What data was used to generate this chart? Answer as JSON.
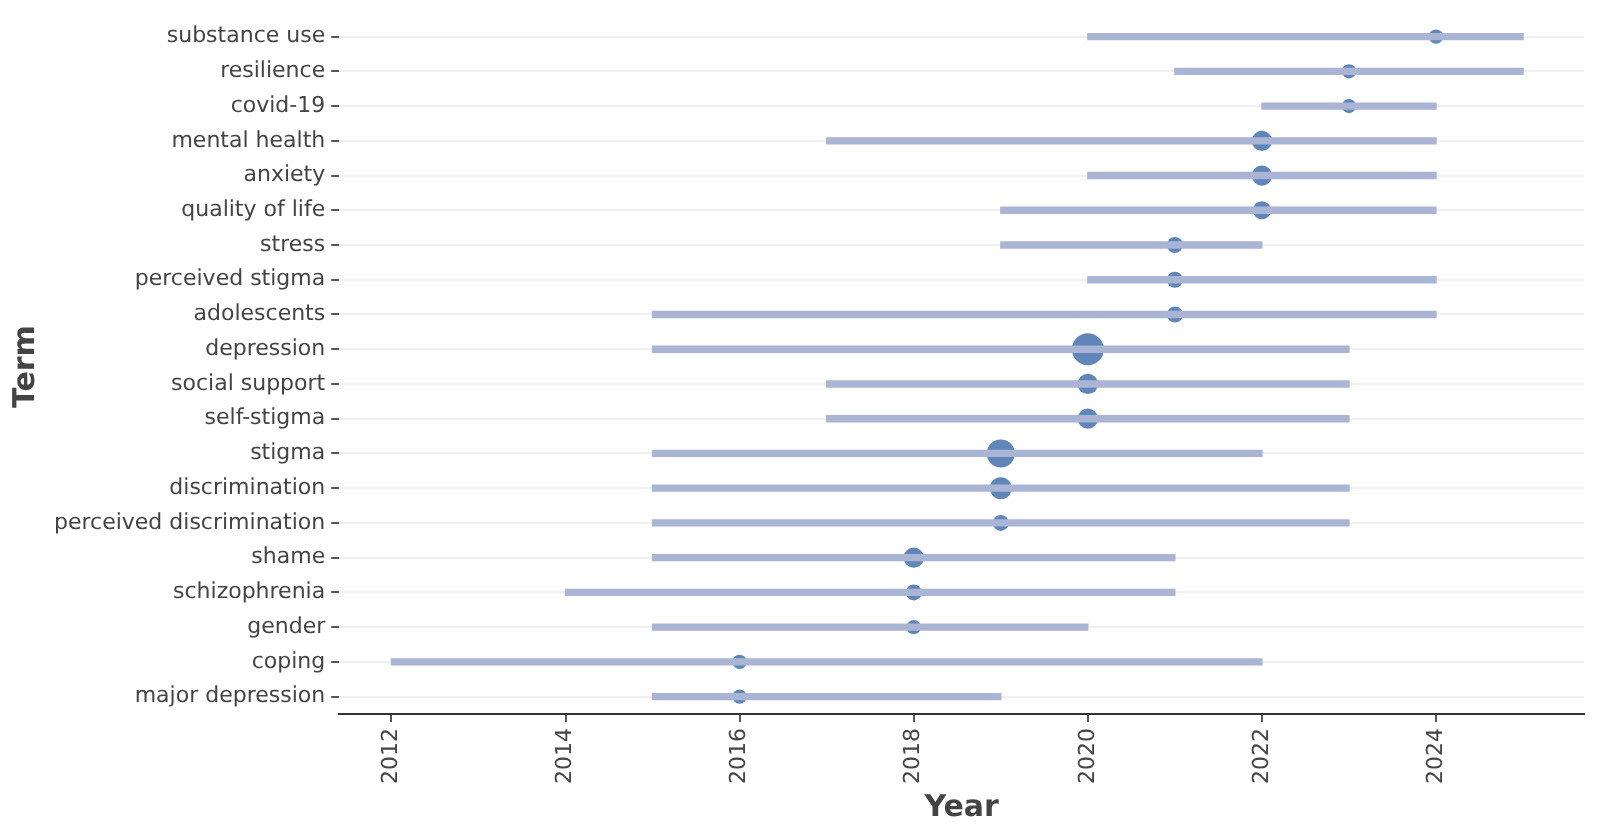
{
  "chart_data": {
    "type": "bar",
    "orientation": "horizontal",
    "xlabel": "Year",
    "ylabel": "Term",
    "categories": [
      "substance use",
      "resilience",
      "covid-19",
      "mental health",
      "anxiety",
      "quality of life",
      "stress",
      "perceived stigma",
      "adolescents",
      "depression",
      "social support",
      "self-stigma",
      "stigma",
      "discrimination",
      "perceived discrimination",
      "shame",
      "schizophrenia",
      "gender",
      "coping",
      "major depression"
    ],
    "series": [
      {
        "color": "#aab4d4",
        "base": [
          2020,
          2021,
          2022,
          2017,
          2020,
          2019,
          2019,
          2020,
          2015,
          2015,
          2017,
          2017,
          2015,
          2015,
          2015,
          2015,
          2014,
          2015,
          2012,
          2015
        ],
        "values": [
          5,
          4,
          2,
          7,
          4,
          5,
          3,
          4,
          9,
          8,
          6,
          6,
          7,
          8,
          8,
          6,
          7,
          5,
          10,
          4
        ]
      },
      {
        "type": "bubble",
        "color": "#4a74ae",
        "values": [
          2024,
          2023,
          2023,
          2022,
          2022,
          2022,
          2021,
          2021,
          2021,
          2020,
          2020,
          2020,
          2019,
          2019,
          2019,
          2018,
          2018,
          2018,
          2016,
          2016
        ],
        "sizes": [
          0.2,
          0.2,
          0.2,
          0.4,
          0.4,
          0.32,
          0.25,
          0.25,
          0.25,
          1,
          0.4,
          0.4,
          0.77,
          0.47,
          0.25,
          0.4,
          0.25,
          0.2,
          0.2,
          0.2
        ]
      }
    ],
    "xlim": [
      2011.4,
      2025.7
    ],
    "xticks": [
      2012,
      2014,
      2016,
      2018,
      2020,
      2022,
      2024
    ],
    "grid": "y"
  }
}
